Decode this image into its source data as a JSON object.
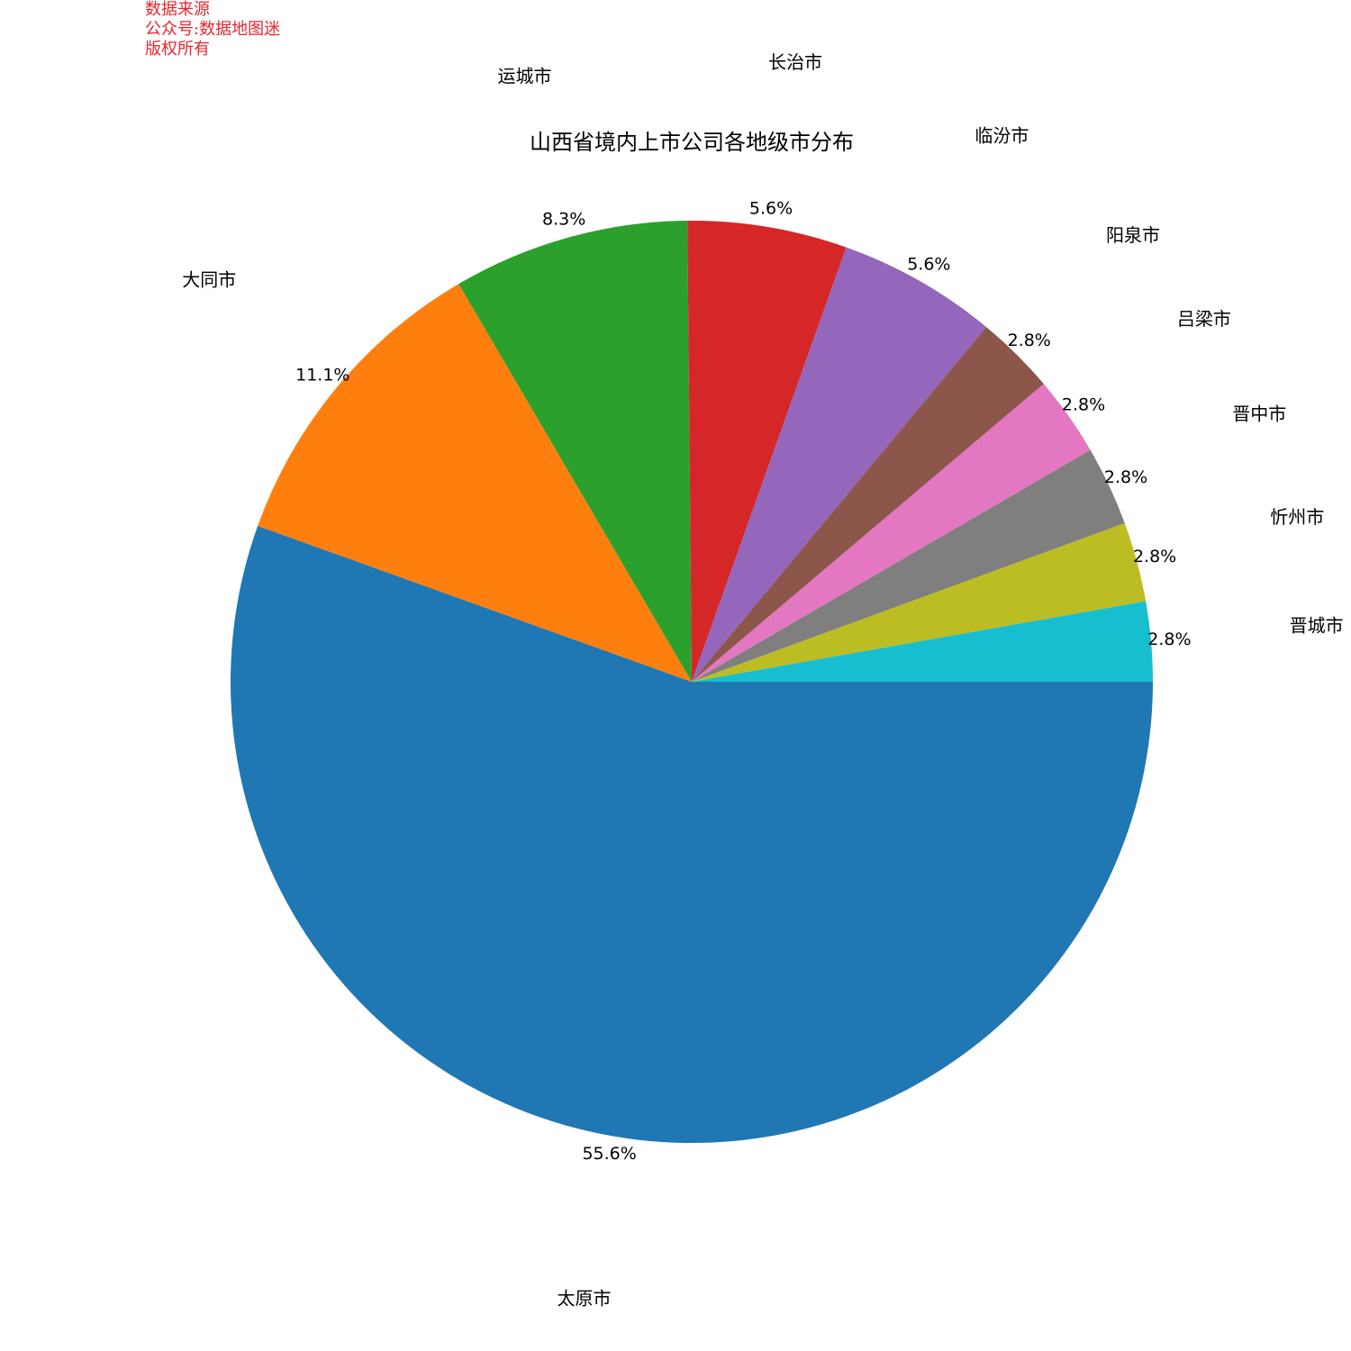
{
  "watermark": {
    "line1": "数据来源",
    "line2": "公众号:数据地图迷",
    "line3": "版权所有"
  },
  "chart_data": {
    "type": "pie",
    "title": "山西省境内上市公司各地级市分布",
    "start_angle_deg": 0,
    "direction": "clockwise",
    "slices": [
      {
        "label": "太原市",
        "value": 55.6,
        "pct_label": "55.6%",
        "color": "#1f77b4"
      },
      {
        "label": "大同市",
        "value": 11.1,
        "pct_label": "11.1%",
        "color": "#ff7f0e"
      },
      {
        "label": "运城市",
        "value": 8.3,
        "pct_label": "8.3%",
        "color": "#2ca02c"
      },
      {
        "label": "长治市",
        "value": 5.6,
        "pct_label": "5.6%",
        "color": "#d62728"
      },
      {
        "label": "临汾市",
        "value": 5.6,
        "pct_label": "5.6%",
        "color": "#9467bd"
      },
      {
        "label": "阳泉市",
        "value": 2.8,
        "pct_label": "2.8%",
        "color": "#8c564b"
      },
      {
        "label": "吕梁市",
        "value": 2.8,
        "pct_label": "2.8%",
        "color": "#e377c2"
      },
      {
        "label": "晋中市",
        "value": 2.8,
        "pct_label": "2.8%",
        "color": "#7f7f7f"
      },
      {
        "label": "忻州市",
        "value": 2.8,
        "pct_label": "2.8%",
        "color": "#bcbd22"
      },
      {
        "label": "晋城市",
        "value": 2.8,
        "pct_label": "2.8%",
        "color": "#17becf"
      }
    ]
  }
}
